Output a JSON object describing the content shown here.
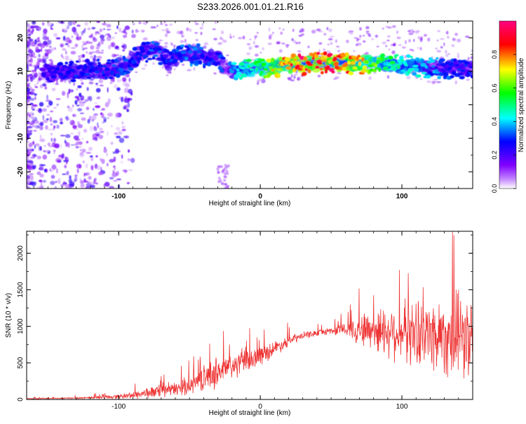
{
  "title": "S233.2026.001.01.21.R16",
  "chart_data": [
    {
      "type": "heatmap",
      "title": "",
      "xlabel": "Height of straight line (km)",
      "ylabel": "Frequency (Hz)",
      "xlim": [
        -165,
        150
      ],
      "ylim": [
        -25,
        25
      ],
      "xticks": [
        -100,
        0,
        100
      ],
      "yticks": [
        -20,
        -10,
        0,
        10,
        20
      ],
      "colorbar": {
        "label": "Normalized spectral amplitude",
        "range": [
          0,
          1
        ],
        "ticks": [
          0.0,
          0.2,
          0.4,
          0.6,
          0.8
        ],
        "colormap": [
          "#ffffff",
          "#8000ff",
          "#0000ff",
          "#00ffff",
          "#00ff00",
          "#ffff00",
          "#ff0000",
          "#ff0080"
        ]
      },
      "ridge": {
        "x": [
          -150,
          -130,
          -110,
          -95,
          -85,
          -75,
          -65,
          -55,
          -45,
          -35,
          -30,
          -25,
          -15,
          -5,
          0,
          10,
          20,
          30,
          40,
          50,
          60,
          70,
          80,
          90,
          100,
          110,
          120,
          130,
          140,
          150
        ],
        "freq": [
          9.5,
          10,
          10.5,
          12,
          15,
          17,
          13,
          15,
          15,
          14,
          14,
          10,
          10,
          11,
          11,
          11.5,
          12,
          12,
          12.5,
          12.5,
          12.5,
          12,
          12.5,
          12.5,
          12,
          11.5,
          11,
          11,
          11,
          11
        ],
        "amplitude": [
          0.25,
          0.3,
          0.3,
          0.35,
          0.3,
          0.35,
          0.3,
          0.35,
          0.35,
          0.3,
          0.3,
          0.35,
          0.45,
          0.55,
          0.6,
          0.75,
          0.85,
          0.95,
          0.9,
          1.0,
          0.9,
          0.8,
          0.65,
          0.55,
          0.5,
          0.45,
          0.4,
          0.35,
          0.3,
          0.3
        ]
      }
    },
    {
      "type": "line",
      "title": "",
      "xlabel": "Height of straight line (km)",
      "ylabel": "SNR (10 * v/v)",
      "xlim": [
        -165,
        150
      ],
      "ylim": [
        0,
        2300
      ],
      "xticks": [
        -100,
        0,
        100
      ],
      "yticks": [
        0,
        500,
        1000,
        1500,
        2000
      ],
      "grid": false,
      "color": "#ee3333",
      "envelope": {
        "x": [
          -165,
          -140,
          -120,
          -100,
          -90,
          -80,
          -70,
          -60,
          -50,
          -40,
          -30,
          -20,
          -10,
          0,
          10,
          20,
          30,
          40,
          50,
          60,
          70,
          80,
          90,
          100,
          110,
          120,
          130,
          140,
          150
        ],
        "mean": [
          10,
          15,
          25,
          40,
          60,
          90,
          110,
          140,
          200,
          290,
          380,
          450,
          520,
          600,
          700,
          800,
          870,
          910,
          940,
          960,
          960,
          950,
          940,
          920,
          900,
          900,
          880,
          860,
          820
        ],
        "spread": [
          8,
          12,
          20,
          35,
          60,
          90,
          100,
          110,
          150,
          200,
          260,
          220,
          180,
          160,
          120,
          90,
          60,
          50,
          60,
          120,
          250,
          350,
          420,
          480,
          520,
          580,
          650,
          700,
          700
        ]
      }
    }
  ]
}
